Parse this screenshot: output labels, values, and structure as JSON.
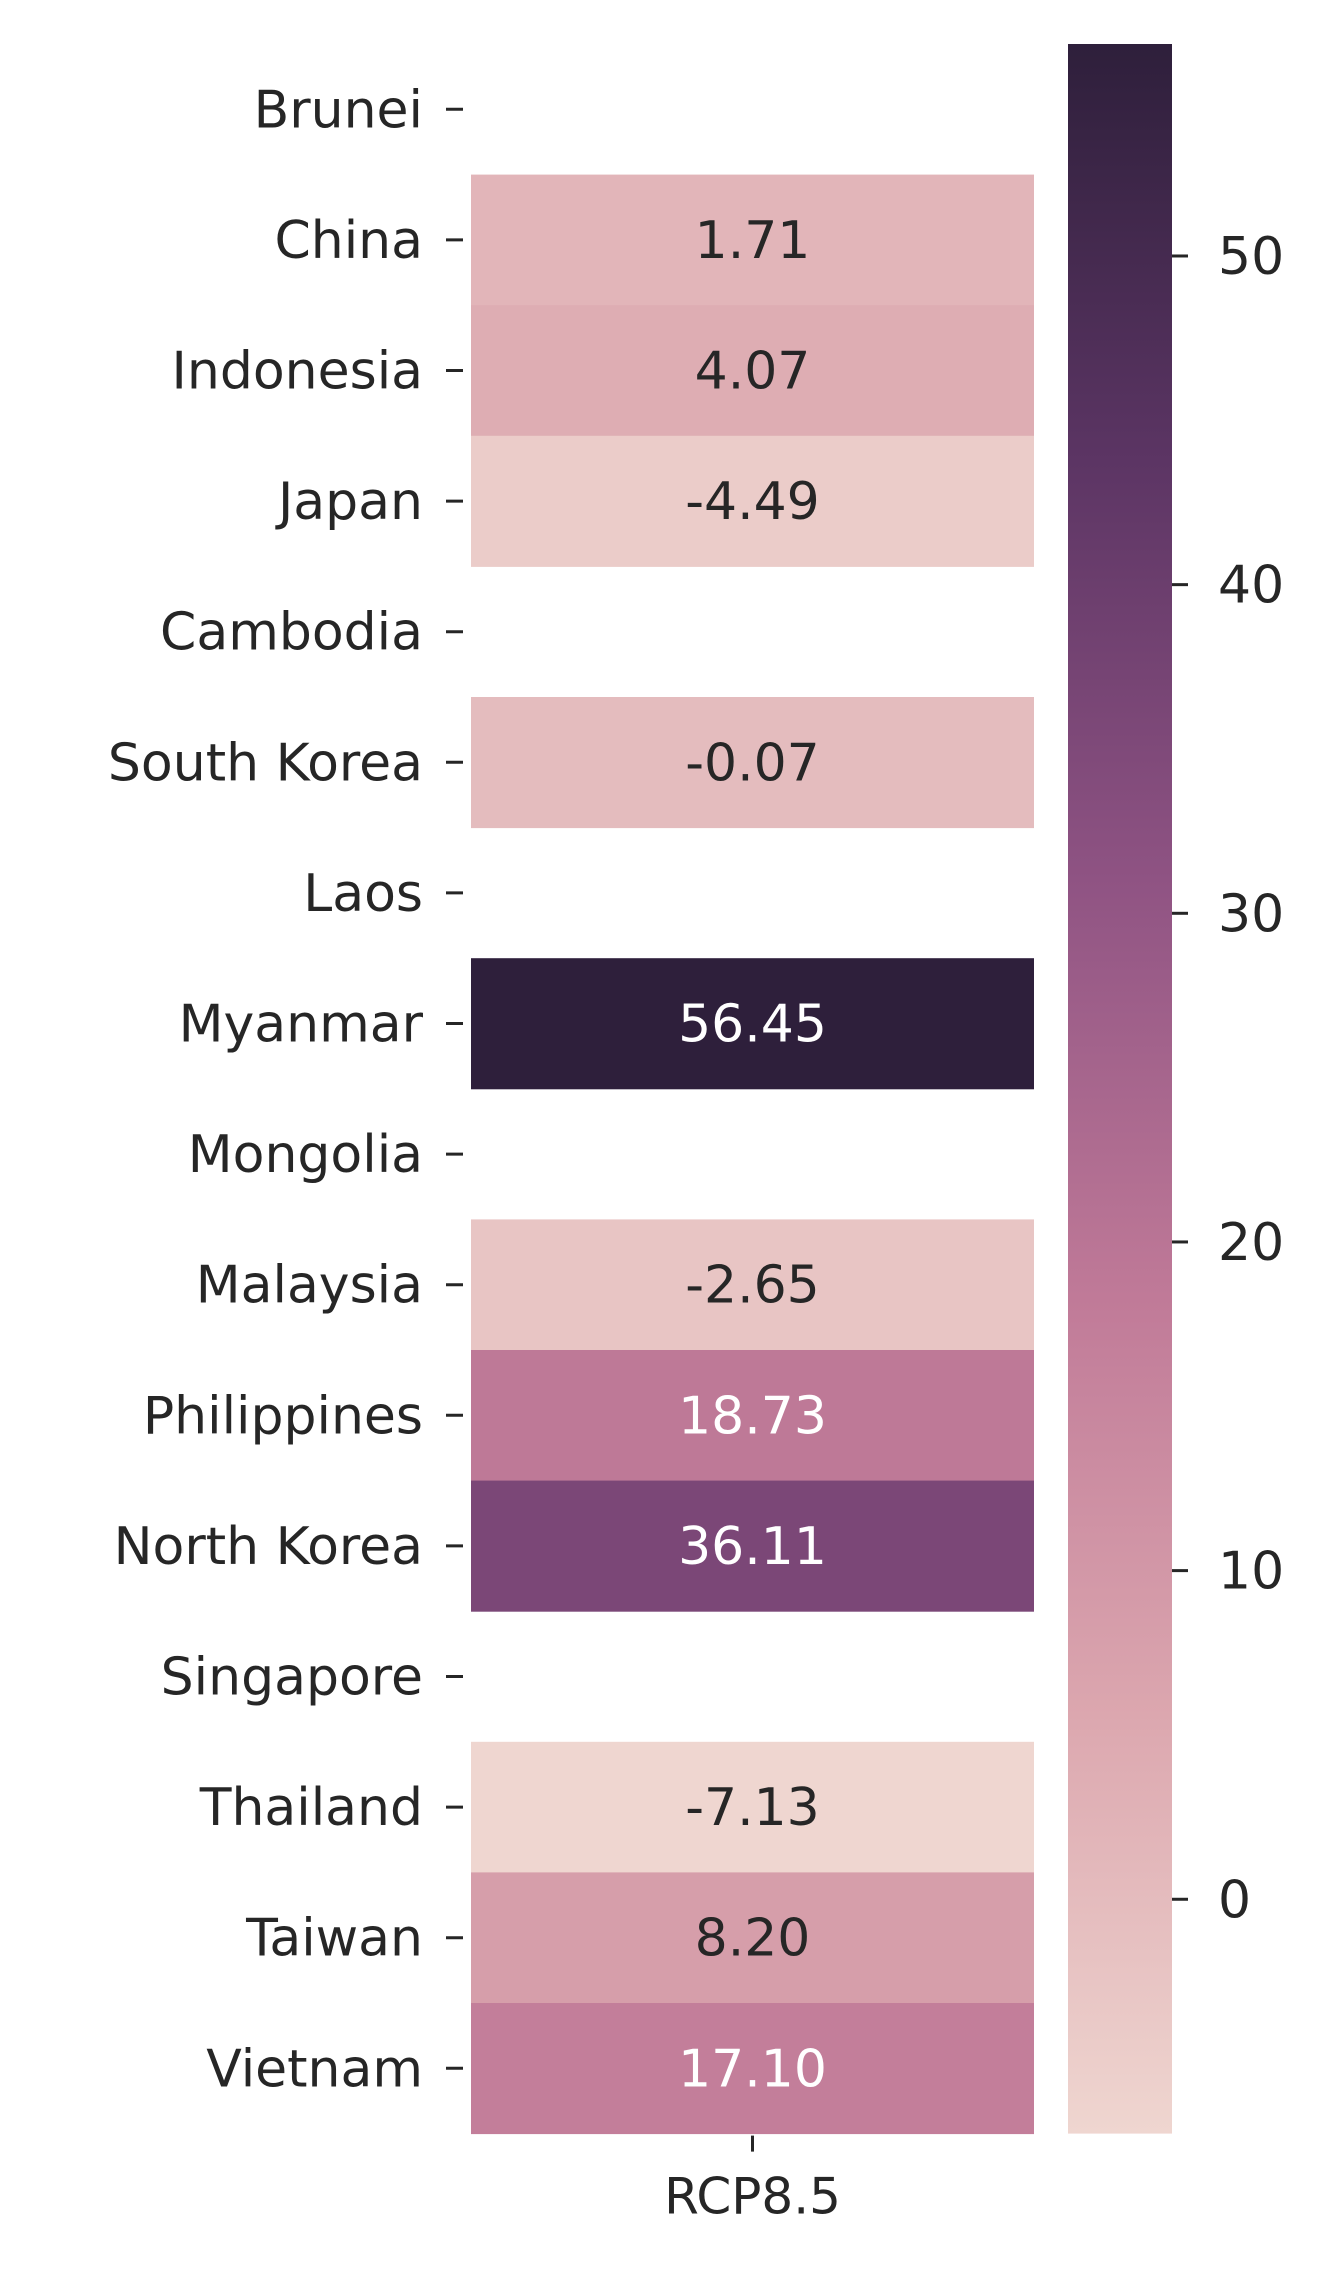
{
  "chart_data": {
    "type": "heatmap",
    "column": "RCP8.5",
    "rows": [
      "Brunei",
      "China",
      "Indonesia",
      "Japan",
      "Cambodia",
      "South Korea",
      "Laos",
      "Myanmar",
      "Mongolia",
      "Malaysia",
      "Philippines",
      "North Korea",
      "Singapore",
      "Thailand",
      "Taiwan",
      "Vietnam"
    ],
    "values": [
      null,
      1.71,
      4.07,
      -4.49,
      null,
      -0.07,
      null,
      56.45,
      null,
      -2.65,
      18.73,
      36.11,
      null,
      -7.13,
      8.2,
      17.1
    ],
    "labels": [
      "",
      "1.71",
      "4.07",
      "-4.49",
      "",
      "-0.07",
      "",
      "56.45",
      "",
      "-2.65",
      "18.73",
      "36.11",
      "",
      "-7.13",
      "8.20",
      "17.10"
    ],
    "colorbar": {
      "vmin": -7.13,
      "vmax": 56.45,
      "ticks": [
        0,
        10,
        20,
        30,
        40,
        50
      ],
      "tick_labels": [
        "0",
        "10",
        "20",
        "30",
        "40",
        "50"
      ],
      "colors": [
        "#efd6d0",
        "#dca7af",
        "#c07a98",
        "#8f5383",
        "#5c3564",
        "#2e1f3b"
      ]
    },
    "grid": false
  }
}
